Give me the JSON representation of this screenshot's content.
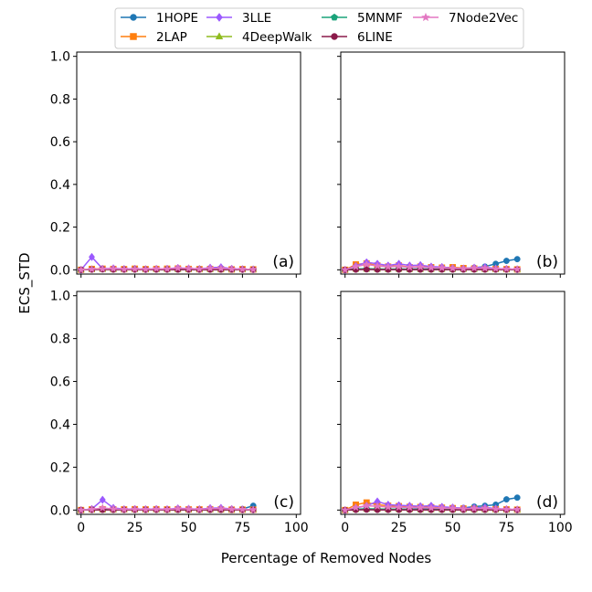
{
  "figure": {
    "xlabel": "Percentage of Removed Nodes",
    "ylabel": "ECS_STD"
  },
  "legend": {
    "placement": "top-center",
    "columns": 4,
    "entries": [
      {
        "label": "1HOPE",
        "color": "#1f77b4",
        "marker": "circle"
      },
      {
        "label": "2LAP",
        "color": "#ff7f0e",
        "marker": "square"
      },
      {
        "label": "3LLE",
        "color": "#9b59ff",
        "marker": "diamond"
      },
      {
        "label": "4DeepWalk",
        "color": "#8fbc1e",
        "marker": "triangle"
      },
      {
        "label": "5MNMF",
        "color": "#1aa37a",
        "marker": "pentagon"
      },
      {
        "label": "6LINE",
        "color": "#8b1a4a",
        "marker": "circle"
      },
      {
        "label": "7Node2Vec",
        "color": "#e377c2",
        "marker": "star"
      }
    ]
  },
  "chart_data": [
    {
      "type": "line",
      "panel_label": "(a)",
      "xlim": [
        -2,
        102
      ],
      "ylim": [
        -0.02,
        1.02
      ],
      "xticks": [
        0,
        25,
        50,
        75,
        100
      ],
      "yticks": [
        "0.0",
        "0.2",
        "0.4",
        "0.6",
        "0.8",
        "1.0"
      ],
      "show_xticklabels": false,
      "show_yticklabels": true,
      "x": [
        0,
        5,
        10,
        15,
        20,
        25,
        30,
        35,
        40,
        45,
        50,
        55,
        60,
        65,
        70,
        75,
        80
      ],
      "series": [
        {
          "name": "1HOPE",
          "values": [
            0.0,
            0.003,
            0.004,
            0.003,
            0.002,
            0.003,
            0.002,
            0.005,
            0.003,
            0.004,
            0.003,
            0.002,
            0.003,
            0.004,
            0.002,
            0.003,
            0.002
          ]
        },
        {
          "name": "2LAP",
          "values": [
            0.0,
            0.004,
            0.005,
            0.004,
            0.003,
            0.005,
            0.003,
            0.004,
            0.005,
            0.006,
            0.004,
            0.003,
            0.004,
            0.003,
            0.002,
            0.003,
            0.002
          ]
        },
        {
          "name": "3LLE",
          "values": [
            0.0,
            0.06,
            0.005,
            0.007,
            0.004,
            0.005,
            0.003,
            0.004,
            0.005,
            0.009,
            0.006,
            0.004,
            0.01,
            0.012,
            0.005,
            0.003,
            0.002
          ]
        },
        {
          "name": "4DeepWalk",
          "values": [
            0.0,
            0.002,
            0.002,
            0.002,
            0.002,
            0.002,
            0.002,
            0.002,
            0.002,
            0.002,
            0.002,
            0.002,
            0.002,
            0.002,
            0.002,
            0.002,
            0.002
          ]
        },
        {
          "name": "5MNMF",
          "values": [
            0.0,
            0.002,
            0.003,
            0.002,
            0.002,
            0.003,
            0.002,
            0.002,
            0.003,
            0.002,
            0.002,
            0.003,
            0.002,
            0.002,
            0.002,
            0.002,
            0.002
          ]
        },
        {
          "name": "6LINE",
          "values": [
            0.0,
            0.001,
            0.002,
            0.001,
            0.001,
            0.001,
            0.001,
            0.001,
            0.001,
            0.001,
            0.001,
            0.001,
            0.001,
            0.001,
            0.001,
            0.001,
            0.001
          ]
        },
        {
          "name": "7Node2Vec",
          "values": [
            0.0,
            0.003,
            0.004,
            0.005,
            0.003,
            0.004,
            0.003,
            0.005,
            0.004,
            0.008,
            0.006,
            0.004,
            0.007,
            0.006,
            0.004,
            0.003,
            0.002
          ]
        }
      ]
    },
    {
      "type": "line",
      "panel_label": "(b)",
      "xlim": [
        -2,
        102
      ],
      "ylim": [
        -0.02,
        1.02
      ],
      "xticks": [
        0,
        25,
        50,
        75,
        100
      ],
      "yticks": [
        "0.0",
        "0.2",
        "0.4",
        "0.6",
        "0.8",
        "1.0"
      ],
      "show_xticklabels": false,
      "show_yticklabels": false,
      "x": [
        0,
        5,
        10,
        15,
        20,
        25,
        30,
        35,
        40,
        45,
        50,
        55,
        60,
        65,
        70,
        75,
        80
      ],
      "series": [
        {
          "name": "1HOPE",
          "values": [
            0.0,
            0.002,
            0.003,
            0.002,
            0.003,
            0.002,
            0.003,
            0.004,
            0.003,
            0.004,
            0.005,
            0.006,
            0.01,
            0.015,
            0.028,
            0.042,
            0.05
          ]
        },
        {
          "name": "2LAP",
          "values": [
            0.0,
            0.025,
            0.03,
            0.02,
            0.015,
            0.02,
            0.012,
            0.015,
            0.012,
            0.01,
            0.012,
            0.008,
            0.006,
            0.005,
            0.004,
            0.003,
            0.002
          ]
        },
        {
          "name": "3LLE",
          "values": [
            0.0,
            0.018,
            0.035,
            0.028,
            0.02,
            0.028,
            0.02,
            0.022,
            0.015,
            0.013,
            0.008,
            0.006,
            0.01,
            0.012,
            0.006,
            0.004,
            0.002
          ]
        },
        {
          "name": "4DeepWalk",
          "values": [
            0.0,
            0.003,
            0.003,
            0.003,
            0.002,
            0.003,
            0.002,
            0.002,
            0.002,
            0.002,
            0.002,
            0.002,
            0.002,
            0.002,
            0.002,
            0.002,
            0.002
          ]
        },
        {
          "name": "5MNMF",
          "values": [
            0.0,
            0.004,
            0.005,
            0.004,
            0.003,
            0.004,
            0.003,
            0.003,
            0.003,
            0.003,
            0.002,
            0.002,
            0.002,
            0.002,
            0.002,
            0.002,
            0.002
          ]
        },
        {
          "name": "6LINE",
          "values": [
            0.0,
            0.001,
            0.002,
            0.001,
            0.001,
            0.001,
            0.001,
            0.001,
            0.001,
            0.001,
            0.001,
            0.001,
            0.001,
            0.001,
            0.001,
            0.001,
            0.001
          ]
        },
        {
          "name": "7Node2Vec",
          "values": [
            0.0,
            0.015,
            0.025,
            0.018,
            0.014,
            0.016,
            0.012,
            0.013,
            0.01,
            0.009,
            0.007,
            0.006,
            0.008,
            0.007,
            0.005,
            0.004,
            0.003
          ]
        }
      ]
    },
    {
      "type": "line",
      "panel_label": "(c)",
      "xlim": [
        -2,
        102
      ],
      "ylim": [
        -0.02,
        1.02
      ],
      "xticks": [
        0,
        25,
        50,
        75,
        100
      ],
      "yticks": [
        "0.0",
        "0.2",
        "0.4",
        "0.6",
        "0.8",
        "1.0"
      ],
      "show_xticklabels": true,
      "show_yticklabels": true,
      "x": [
        0,
        5,
        10,
        15,
        20,
        25,
        30,
        35,
        40,
        45,
        50,
        55,
        60,
        65,
        70,
        75,
        80
      ],
      "series": [
        {
          "name": "1HOPE",
          "values": [
            0.0,
            0.002,
            0.003,
            0.002,
            0.002,
            0.003,
            0.002,
            0.003,
            0.002,
            0.003,
            0.002,
            0.002,
            0.003,
            0.004,
            0.003,
            0.005,
            0.02
          ]
        },
        {
          "name": "2LAP",
          "values": [
            0.0,
            0.003,
            0.004,
            0.003,
            0.003,
            0.004,
            0.003,
            0.004,
            0.003,
            0.004,
            0.003,
            0.003,
            0.004,
            0.003,
            0.002,
            0.002,
            0.002
          ]
        },
        {
          "name": "3LLE",
          "values": [
            0.0,
            0.005,
            0.048,
            0.01,
            0.004,
            0.005,
            0.004,
            0.005,
            0.004,
            0.008,
            0.006,
            0.004,
            0.009,
            0.01,
            0.005,
            0.003,
            0.002
          ]
        },
        {
          "name": "4DeepWalk",
          "values": [
            0.0,
            0.002,
            0.002,
            0.002,
            0.002,
            0.002,
            0.002,
            0.002,
            0.002,
            0.002,
            0.002,
            0.002,
            0.002,
            0.002,
            0.002,
            0.002,
            0.002
          ]
        },
        {
          "name": "5MNMF",
          "values": [
            0.0,
            0.002,
            0.003,
            0.002,
            0.002,
            0.002,
            0.002,
            0.002,
            0.002,
            0.002,
            0.002,
            0.002,
            0.002,
            0.002,
            0.002,
            0.002,
            0.002
          ]
        },
        {
          "name": "6LINE",
          "values": [
            0.0,
            0.001,
            0.001,
            0.001,
            0.001,
            0.001,
            0.001,
            0.001,
            0.001,
            0.001,
            0.001,
            0.001,
            0.001,
            0.001,
            0.001,
            0.001,
            0.001
          ]
        },
        {
          "name": "7Node2Vec",
          "values": [
            0.0,
            0.003,
            0.01,
            0.005,
            0.003,
            0.004,
            0.003,
            0.004,
            0.003,
            0.006,
            0.005,
            0.003,
            0.006,
            0.006,
            0.004,
            0.003,
            0.002
          ]
        }
      ]
    },
    {
      "type": "line",
      "panel_label": "(d)",
      "xlim": [
        -2,
        102
      ],
      "ylim": [
        -0.02,
        1.02
      ],
      "xticks": [
        0,
        25,
        50,
        75,
        100
      ],
      "yticks": [
        "0.0",
        "0.2",
        "0.4",
        "0.6",
        "0.8",
        "1.0"
      ],
      "show_xticklabels": true,
      "show_yticklabels": false,
      "x": [
        0,
        5,
        10,
        15,
        20,
        25,
        30,
        35,
        40,
        45,
        50,
        55,
        60,
        65,
        70,
        75,
        80
      ],
      "series": [
        {
          "name": "1HOPE",
          "values": [
            0.0,
            0.002,
            0.003,
            0.003,
            0.003,
            0.004,
            0.004,
            0.005,
            0.006,
            0.007,
            0.008,
            0.01,
            0.016,
            0.02,
            0.025,
            0.05,
            0.058
          ]
        },
        {
          "name": "2LAP",
          "values": [
            0.0,
            0.025,
            0.035,
            0.025,
            0.02,
            0.018,
            0.015,
            0.014,
            0.013,
            0.011,
            0.009,
            0.007,
            0.006,
            0.005,
            0.004,
            0.003,
            0.002
          ]
        },
        {
          "name": "3LLE",
          "values": [
            0.0,
            0.01,
            0.02,
            0.04,
            0.025,
            0.022,
            0.02,
            0.018,
            0.02,
            0.015,
            0.012,
            0.008,
            0.01,
            0.012,
            0.007,
            0.004,
            0.002
          ]
        },
        {
          "name": "4DeepWalk",
          "values": [
            0.0,
            0.003,
            0.004,
            0.004,
            0.003,
            0.003,
            0.003,
            0.002,
            0.002,
            0.002,
            0.002,
            0.002,
            0.002,
            0.002,
            0.002,
            0.002,
            0.002
          ]
        },
        {
          "name": "5MNMF",
          "values": [
            0.0,
            0.004,
            0.006,
            0.005,
            0.004,
            0.004,
            0.003,
            0.003,
            0.003,
            0.003,
            0.002,
            0.002,
            0.002,
            0.002,
            0.002,
            0.002,
            0.002
          ]
        },
        {
          "name": "6LINE",
          "values": [
            0.0,
            0.001,
            0.002,
            0.001,
            0.001,
            0.001,
            0.001,
            0.001,
            0.001,
            0.001,
            0.001,
            0.001,
            0.001,
            0.001,
            0.001,
            0.001,
            0.001
          ]
        },
        {
          "name": "7Node2Vec",
          "values": [
            0.0,
            0.012,
            0.02,
            0.018,
            0.014,
            0.013,
            0.012,
            0.011,
            0.01,
            0.009,
            0.008,
            0.006,
            0.007,
            0.007,
            0.005,
            0.004,
            0.003
          ]
        }
      ]
    }
  ]
}
